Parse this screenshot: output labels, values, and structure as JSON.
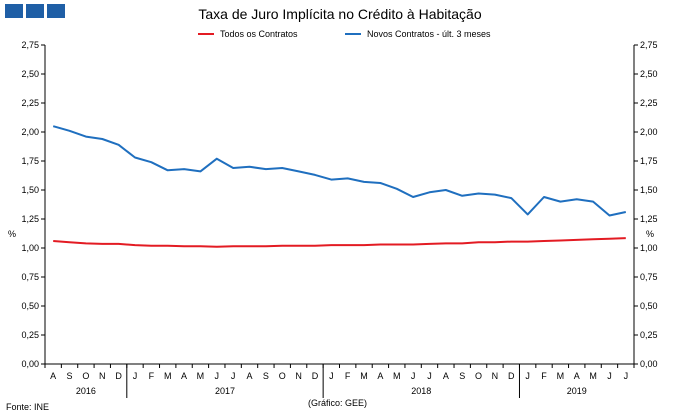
{
  "header": {
    "title": "Taxa de Juro Implícita no Crédito à Habitação"
  },
  "footer": {
    "source": "Fonte: INE",
    "credit": "(Gráfico: GEE)"
  },
  "colors": {
    "series_red": "#e31b23",
    "series_blue": "#1f6fbf",
    "logo": "#1f5fa6"
  },
  "chart_data": {
    "type": "line",
    "title": "Taxa de Juro Implícita no Crédito à Habitação",
    "ylabel": "%",
    "ylim": [
      0,
      2.75
    ],
    "yticks": [
      "0,00",
      "0,25",
      "0,50",
      "0,75",
      "1,00",
      "1,25",
      "1,50",
      "1,75",
      "2,00",
      "2,25",
      "2,50",
      "2,75"
    ],
    "grid": false,
    "legend_position": "top",
    "month_labels": [
      "A",
      "S",
      "O",
      "N",
      "D",
      "J",
      "F",
      "M",
      "A",
      "M",
      "J",
      "J",
      "A",
      "S",
      "O",
      "N",
      "D",
      "J",
      "F",
      "M",
      "A",
      "M",
      "J",
      "J",
      "A",
      "S",
      "O",
      "N",
      "D",
      "J",
      "F",
      "M",
      "A",
      "M",
      "J",
      "J"
    ],
    "years": [
      {
        "label": "2016",
        "start": 0,
        "end": 4
      },
      {
        "label": "2017",
        "start": 5,
        "end": 16
      },
      {
        "label": "2018",
        "start": 17,
        "end": 28
      },
      {
        "label": "2019",
        "start": 29,
        "end": 35
      }
    ],
    "series": [
      {
        "name": "Todos os Contratos",
        "color": "#e31b23",
        "values": [
          1.06,
          1.05,
          1.04,
          1.035,
          1.035,
          1.025,
          1.02,
          1.02,
          1.015,
          1.015,
          1.01,
          1.015,
          1.015,
          1.015,
          1.02,
          1.02,
          1.02,
          1.025,
          1.025,
          1.025,
          1.03,
          1.03,
          1.03,
          1.035,
          1.04,
          1.04,
          1.05,
          1.05,
          1.055,
          1.055,
          1.06,
          1.065,
          1.07,
          1.075,
          1.08,
          1.085
        ]
      },
      {
        "name": "Novos Contratos - últ. 3 meses",
        "color": "#1f6fbf",
        "values": [
          2.05,
          2.01,
          1.96,
          1.94,
          1.89,
          1.78,
          1.74,
          1.67,
          1.68,
          1.66,
          1.77,
          1.69,
          1.7,
          1.68,
          1.69,
          1.66,
          1.63,
          1.59,
          1.6,
          1.57,
          1.56,
          1.51,
          1.44,
          1.48,
          1.5,
          1.45,
          1.47,
          1.46,
          1.43,
          1.29,
          1.44,
          1.4,
          1.42,
          1.4,
          1.28,
          1.31
        ]
      }
    ]
  }
}
